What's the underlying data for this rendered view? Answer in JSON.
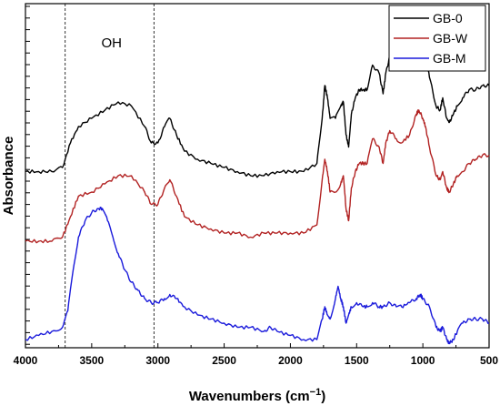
{
  "chart_data": {
    "type": "line",
    "xlabel": "Wavenumbers (cm",
    "xlabel_sup": "−1",
    "xlabel_close": ")",
    "ylabel": "Absorbance",
    "xlim": [
      4000,
      500
    ],
    "x_reversed": true,
    "xticks": [
      4000,
      3500,
      3000,
      2500,
      2000,
      1500,
      1000,
      500
    ],
    "xtick_labels": [
      "4000",
      "3500",
      "3000",
      "2500",
      "2000",
      "1500",
      "1000",
      "500"
    ],
    "y_tick_labels_shown": false,
    "grid": false,
    "legend_position": "top-right",
    "annotations": [
      {
        "text": "OH",
        "x": 3350
      }
    ],
    "vertical_lines": [
      3700,
      3030
    ],
    "series": [
      {
        "name": "GB-0",
        "color": "#000000",
        "points": [
          [
            4000,
            0.81
          ],
          [
            3900,
            0.81
          ],
          [
            3800,
            0.81
          ],
          [
            3720,
            0.8
          ],
          [
            3660,
            0.74
          ],
          [
            3600,
            0.7
          ],
          [
            3500,
            0.68
          ],
          [
            3400,
            0.66
          ],
          [
            3300,
            0.64
          ],
          [
            3200,
            0.65
          ],
          [
            3100,
            0.7
          ],
          [
            3050,
            0.74
          ],
          [
            3000,
            0.74
          ],
          [
            2950,
            0.7
          ],
          [
            2910,
            0.68
          ],
          [
            2860,
            0.72
          ],
          [
            2800,
            0.76
          ],
          [
            2700,
            0.78
          ],
          [
            2600,
            0.79
          ],
          [
            2500,
            0.8
          ],
          [
            2400,
            0.81
          ],
          [
            2300,
            0.82
          ],
          [
            2200,
            0.82
          ],
          [
            2100,
            0.81
          ],
          [
            2000,
            0.81
          ],
          [
            1900,
            0.81
          ],
          [
            1800,
            0.79
          ],
          [
            1760,
            0.68
          ],
          [
            1740,
            0.6
          ],
          [
            1720,
            0.63
          ],
          [
            1700,
            0.68
          ],
          [
            1660,
            0.68
          ],
          [
            1620,
            0.65
          ],
          [
            1600,
            0.64
          ],
          [
            1580,
            0.72
          ],
          [
            1560,
            0.75
          ],
          [
            1540,
            0.67
          ],
          [
            1510,
            0.63
          ],
          [
            1480,
            0.61
          ],
          [
            1450,
            0.61
          ],
          [
            1420,
            0.61
          ],
          [
            1380,
            0.55
          ],
          [
            1330,
            0.57
          ],
          [
            1300,
            0.62
          ],
          [
            1280,
            0.57
          ],
          [
            1250,
            0.53
          ],
          [
            1200,
            0.55
          ],
          [
            1160,
            0.56
          ],
          [
            1100,
            0.55
          ],
          [
            1050,
            0.5
          ],
          [
            1030,
            0.49
          ],
          [
            1000,
            0.51
          ],
          [
            980,
            0.53
          ],
          [
            950,
            0.58
          ],
          [
            900,
            0.65
          ],
          [
            870,
            0.66
          ],
          [
            850,
            0.63
          ],
          [
            820,
            0.68
          ],
          [
            800,
            0.69
          ],
          [
            770,
            0.67
          ],
          [
            740,
            0.65
          ],
          [
            700,
            0.63
          ],
          [
            650,
            0.61
          ],
          [
            600,
            0.61
          ],
          [
            550,
            0.6
          ],
          [
            500,
            0.6
          ]
        ]
      },
      {
        "name": "GB-W",
        "color": "#b22222",
        "points": [
          [
            4000,
            0.98
          ],
          [
            3900,
            0.98
          ],
          [
            3800,
            0.98
          ],
          [
            3720,
            0.97
          ],
          [
            3660,
            0.92
          ],
          [
            3600,
            0.87
          ],
          [
            3500,
            0.86
          ],
          [
            3400,
            0.84
          ],
          [
            3300,
            0.82
          ],
          [
            3200,
            0.82
          ],
          [
            3100,
            0.86
          ],
          [
            3050,
            0.89
          ],
          [
            3000,
            0.89
          ],
          [
            2950,
            0.85
          ],
          [
            2910,
            0.83
          ],
          [
            2860,
            0.87
          ],
          [
            2800,
            0.92
          ],
          [
            2700,
            0.94
          ],
          [
            2600,
            0.95
          ],
          [
            2500,
            0.96
          ],
          [
            2400,
            0.96
          ],
          [
            2300,
            0.97
          ],
          [
            2200,
            0.96
          ],
          [
            2100,
            0.96
          ],
          [
            2000,
            0.96
          ],
          [
            1900,
            0.96
          ],
          [
            1800,
            0.94
          ],
          [
            1760,
            0.83
          ],
          [
            1740,
            0.78
          ],
          [
            1720,
            0.81
          ],
          [
            1700,
            0.86
          ],
          [
            1660,
            0.86
          ],
          [
            1620,
            0.84
          ],
          [
            1600,
            0.82
          ],
          [
            1580,
            0.9
          ],
          [
            1560,
            0.93
          ],
          [
            1540,
            0.85
          ],
          [
            1510,
            0.81
          ],
          [
            1480,
            0.79
          ],
          [
            1450,
            0.79
          ],
          [
            1420,
            0.79
          ],
          [
            1380,
            0.73
          ],
          [
            1330,
            0.75
          ],
          [
            1300,
            0.79
          ],
          [
            1280,
            0.74
          ],
          [
            1250,
            0.71
          ],
          [
            1200,
            0.73
          ],
          [
            1160,
            0.74
          ],
          [
            1100,
            0.72
          ],
          [
            1050,
            0.67
          ],
          [
            1030,
            0.66
          ],
          [
            1000,
            0.68
          ],
          [
            980,
            0.7
          ],
          [
            950,
            0.75
          ],
          [
            900,
            0.82
          ],
          [
            870,
            0.83
          ],
          [
            850,
            0.81
          ],
          [
            820,
            0.85
          ],
          [
            800,
            0.86
          ],
          [
            770,
            0.84
          ],
          [
            740,
            0.82
          ],
          [
            700,
            0.81
          ],
          [
            650,
            0.79
          ],
          [
            600,
            0.78
          ],
          [
            550,
            0.77
          ],
          [
            500,
            0.77
          ]
        ]
      },
      {
        "name": "GB-M",
        "color": "#1a1adb",
        "points": [
          [
            4000,
            1.22
          ],
          [
            3900,
            1.21
          ],
          [
            3800,
            1.2
          ],
          [
            3720,
            1.19
          ],
          [
            3680,
            1.15
          ],
          [
            3640,
            1.05
          ],
          [
            3600,
            0.97
          ],
          [
            3550,
            0.93
          ],
          [
            3500,
            0.91
          ],
          [
            3450,
            0.9
          ],
          [
            3420,
            0.9
          ],
          [
            3380,
            0.93
          ],
          [
            3340,
            0.97
          ],
          [
            3300,
            1.01
          ],
          [
            3250,
            1.05
          ],
          [
            3200,
            1.08
          ],
          [
            3150,
            1.1
          ],
          [
            3100,
            1.12
          ],
          [
            3050,
            1.13
          ],
          [
            3000,
            1.13
          ],
          [
            2950,
            1.12
          ],
          [
            2910,
            1.11
          ],
          [
            2860,
            1.12
          ],
          [
            2800,
            1.14
          ],
          [
            2700,
            1.16
          ],
          [
            2600,
            1.17
          ],
          [
            2500,
            1.18
          ],
          [
            2400,
            1.19
          ],
          [
            2300,
            1.19
          ],
          [
            2200,
            1.2
          ],
          [
            2150,
            1.19
          ],
          [
            2100,
            1.2
          ],
          [
            2000,
            1.21
          ],
          [
            1900,
            1.22
          ],
          [
            1800,
            1.22
          ],
          [
            1760,
            1.17
          ],
          [
            1740,
            1.14
          ],
          [
            1720,
            1.16
          ],
          [
            1700,
            1.17
          ],
          [
            1660,
            1.12
          ],
          [
            1640,
            1.09
          ],
          [
            1620,
            1.12
          ],
          [
            1600,
            1.14
          ],
          [
            1580,
            1.18
          ],
          [
            1560,
            1.16
          ],
          [
            1540,
            1.14
          ],
          [
            1500,
            1.13
          ],
          [
            1450,
            1.14
          ],
          [
            1420,
            1.14
          ],
          [
            1380,
            1.13
          ],
          [
            1330,
            1.14
          ],
          [
            1300,
            1.14
          ],
          [
            1250,
            1.13
          ],
          [
            1200,
            1.14
          ],
          [
            1160,
            1.14
          ],
          [
            1100,
            1.13
          ],
          [
            1050,
            1.12
          ],
          [
            1020,
            1.11
          ],
          [
            1000,
            1.12
          ],
          [
            950,
            1.14
          ],
          [
            900,
            1.19
          ],
          [
            870,
            1.2
          ],
          [
            850,
            1.19
          ],
          [
            820,
            1.22
          ],
          [
            800,
            1.23
          ],
          [
            770,
            1.22
          ],
          [
            740,
            1.2
          ],
          [
            700,
            1.18
          ],
          [
            650,
            1.17
          ],
          [
            600,
            1.17
          ],
          [
            550,
            1.17
          ],
          [
            500,
            1.18
          ]
        ]
      }
    ]
  }
}
